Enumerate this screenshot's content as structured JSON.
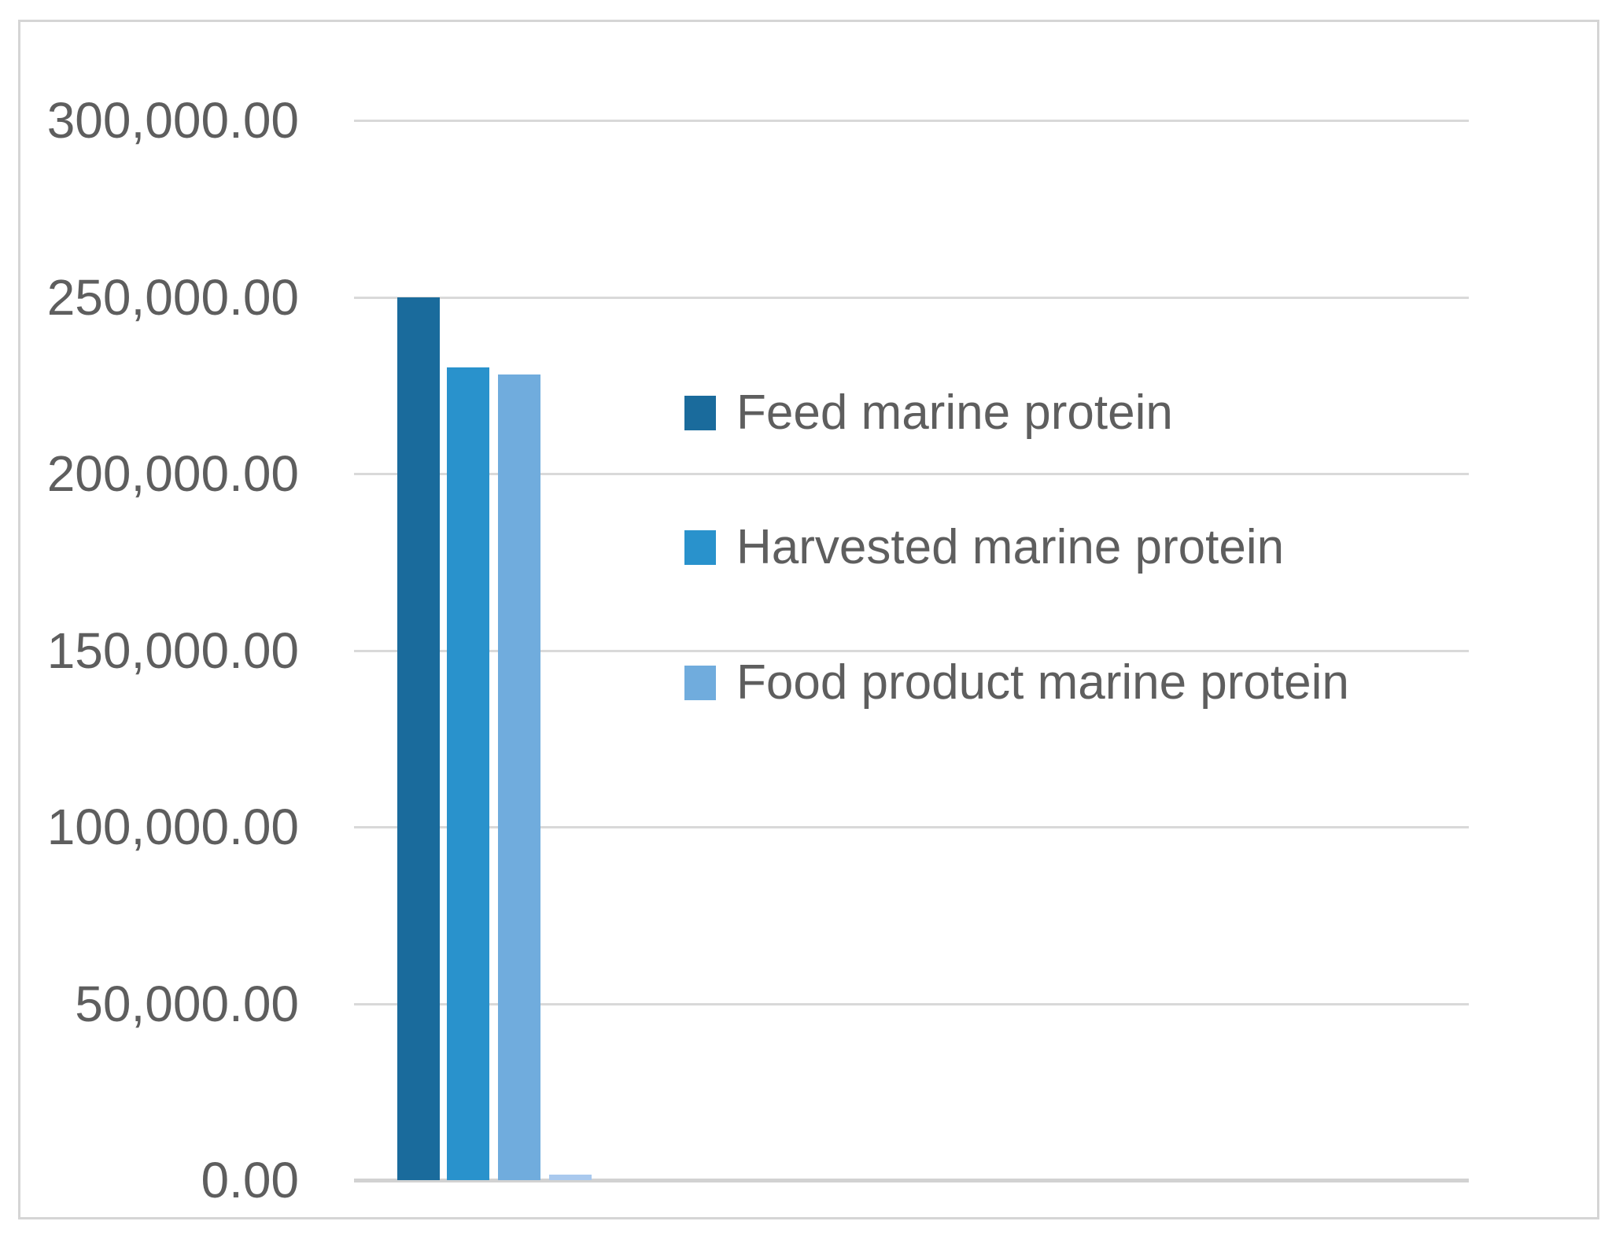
{
  "chart_data": {
    "type": "bar",
    "title": "",
    "categories": [
      ""
    ],
    "series": [
      {
        "name": "Feed marine protein",
        "values": [
          250000
        ],
        "color": "#1a6b9c"
      },
      {
        "name": "Harvested marine protein",
        "values": [
          230000
        ],
        "color": "#2992cc"
      },
      {
        "name": "Food product marine protein",
        "values": [
          228000
        ],
        "color": "#70acdd"
      },
      {
        "name": "unlabeled-trace-bar",
        "values": [
          1500
        ],
        "color": "#a9c9ee",
        "in_legend": false
      }
    ],
    "ylim": [
      0,
      300000
    ],
    "ytick_interval": 50000,
    "yticks": [
      {
        "value": 300000,
        "label": "300,000.00"
      },
      {
        "value": 250000,
        "label": "250,000.00"
      },
      {
        "value": 200000,
        "label": "200,000.00"
      },
      {
        "value": 150000,
        "label": "150,000.00"
      },
      {
        "value": 100000,
        "label": "100,000.00"
      },
      {
        "value": 50000,
        "label": "50,000.00"
      },
      {
        "value": 0,
        "label": "0.00"
      }
    ],
    "grid": true,
    "x_axis_labels_visible": false,
    "legend": {
      "position": "right-center",
      "entries": [
        {
          "label": "Feed marine protein",
          "color": "#1a6b9c"
        },
        {
          "label": "Harvested marine protein",
          "color": "#2992cc"
        },
        {
          "label": "Food product marine protein",
          "color": "#70acdd"
        }
      ]
    },
    "colors": {
      "gridline": "#d9d9d9",
      "axis_line": "#d2d2d2",
      "text": "#5e5e5e",
      "frame_border": "#d5d5d5",
      "background": "#ffffff"
    }
  }
}
